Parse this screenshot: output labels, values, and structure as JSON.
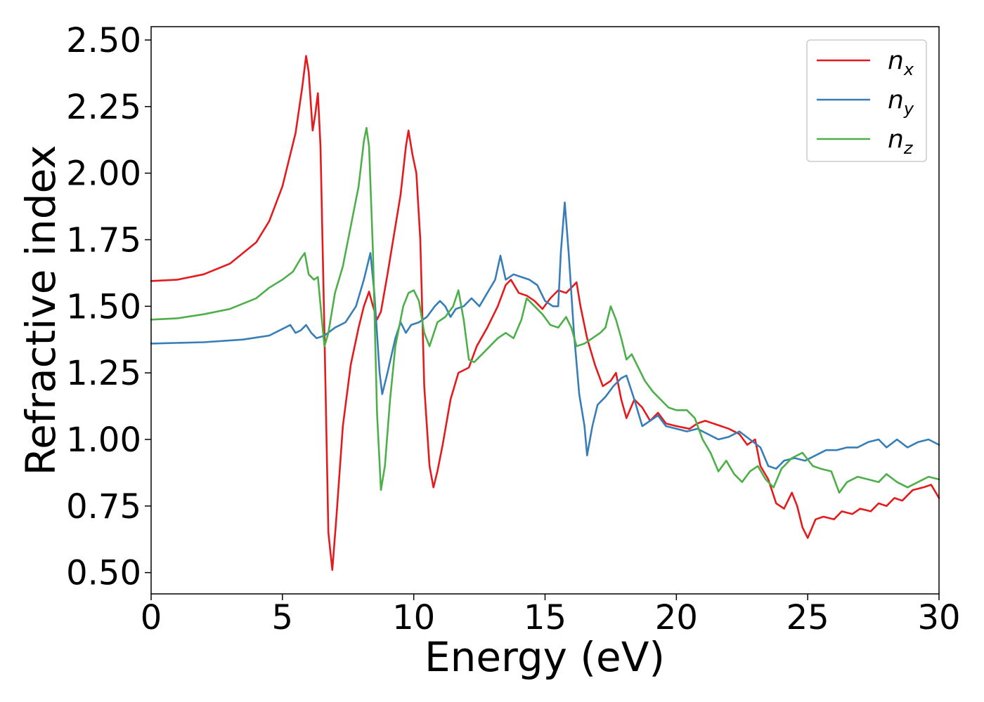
{
  "chart_data": {
    "type": "line",
    "xlabel": "Energy (eV)",
    "ylabel": "Refractive index",
    "xlim": [
      0,
      30
    ],
    "ylim": [
      0.42,
      2.55
    ],
    "xticks": [
      0,
      5,
      10,
      15,
      20,
      25,
      30
    ],
    "xtick_labels": [
      "0",
      "5",
      "10",
      "15",
      "20",
      "25",
      "30"
    ],
    "yticks": [
      0.5,
      0.75,
      1.0,
      1.25,
      1.5,
      1.75,
      2.0,
      2.25,
      2.5
    ],
    "ytick_labels": [
      "0.50",
      "0.75",
      "1.00",
      "1.25",
      "1.50",
      "1.75",
      "2.00",
      "2.25",
      "2.50"
    ],
    "grid": false,
    "legend": "top-right",
    "series": [
      {
        "base": "n",
        "sub": "x",
        "color": "#e41a1c",
        "points": [
          [
            0,
            1.595
          ],
          [
            1,
            1.6
          ],
          [
            2,
            1.62
          ],
          [
            3,
            1.66
          ],
          [
            4,
            1.74
          ],
          [
            4.5,
            1.82
          ],
          [
            5,
            1.95
          ],
          [
            5.5,
            2.15
          ],
          [
            5.75,
            2.32
          ],
          [
            5.9,
            2.44
          ],
          [
            6.0,
            2.38
          ],
          [
            6.15,
            2.16
          ],
          [
            6.25,
            2.22
          ],
          [
            6.35,
            2.3
          ],
          [
            6.45,
            2.1
          ],
          [
            6.6,
            1.4
          ],
          [
            6.75,
            0.65
          ],
          [
            6.9,
            0.51
          ],
          [
            7.05,
            0.7
          ],
          [
            7.3,
            1.05
          ],
          [
            7.6,
            1.28
          ],
          [
            7.9,
            1.42
          ],
          [
            8.1,
            1.5
          ],
          [
            8.3,
            1.555
          ],
          [
            8.45,
            1.5
          ],
          [
            8.6,
            1.45
          ],
          [
            8.75,
            1.48
          ],
          [
            9.0,
            1.62
          ],
          [
            9.3,
            1.8
          ],
          [
            9.5,
            1.92
          ],
          [
            9.7,
            2.1
          ],
          [
            9.8,
            2.16
          ],
          [
            9.95,
            2.07
          ],
          [
            10.1,
            2.0
          ],
          [
            10.25,
            1.75
          ],
          [
            10.4,
            1.2
          ],
          [
            10.6,
            0.9
          ],
          [
            10.75,
            0.82
          ],
          [
            10.9,
            0.88
          ],
          [
            11.1,
            0.98
          ],
          [
            11.4,
            1.15
          ],
          [
            11.7,
            1.25
          ],
          [
            12.1,
            1.27
          ],
          [
            12.4,
            1.35
          ],
          [
            12.8,
            1.42
          ],
          [
            13.2,
            1.5
          ],
          [
            13.5,
            1.58
          ],
          [
            13.7,
            1.6
          ],
          [
            14.0,
            1.55
          ],
          [
            14.3,
            1.54
          ],
          [
            14.6,
            1.52
          ],
          [
            14.9,
            1.49
          ],
          [
            15.2,
            1.53
          ],
          [
            15.5,
            1.56
          ],
          [
            15.8,
            1.55
          ],
          [
            16.0,
            1.57
          ],
          [
            16.2,
            1.59
          ],
          [
            16.35,
            1.5
          ],
          [
            16.6,
            1.38
          ],
          [
            16.9,
            1.28
          ],
          [
            17.2,
            1.2
          ],
          [
            17.5,
            1.22
          ],
          [
            17.7,
            1.25
          ],
          [
            17.9,
            1.15
          ],
          [
            18.1,
            1.08
          ],
          [
            18.4,
            1.15
          ],
          [
            18.7,
            1.12
          ],
          [
            19.0,
            1.07
          ],
          [
            19.3,
            1.1
          ],
          [
            19.6,
            1.06
          ],
          [
            20.0,
            1.05
          ],
          [
            20.5,
            1.04
          ],
          [
            20.8,
            1.06
          ],
          [
            21.1,
            1.07
          ],
          [
            21.4,
            1.06
          ],
          [
            21.7,
            1.05
          ],
          [
            22.0,
            1.04
          ],
          [
            22.4,
            1.02
          ],
          [
            22.7,
            0.98
          ],
          [
            23.0,
            1.0
          ],
          [
            23.2,
            0.9
          ],
          [
            23.5,
            0.85
          ],
          [
            23.8,
            0.76
          ],
          [
            24.1,
            0.74
          ],
          [
            24.4,
            0.8
          ],
          [
            24.6,
            0.75
          ],
          [
            24.8,
            0.67
          ],
          [
            25.0,
            0.63
          ],
          [
            25.3,
            0.7
          ],
          [
            25.6,
            0.71
          ],
          [
            26.0,
            0.7
          ],
          [
            26.3,
            0.73
          ],
          [
            26.7,
            0.72
          ],
          [
            27.0,
            0.74
          ],
          [
            27.4,
            0.73
          ],
          [
            27.7,
            0.76
          ],
          [
            28.0,
            0.75
          ],
          [
            28.3,
            0.78
          ],
          [
            28.6,
            0.77
          ],
          [
            29.0,
            0.81
          ],
          [
            29.4,
            0.82
          ],
          [
            29.7,
            0.83
          ],
          [
            30,
            0.78
          ]
        ]
      },
      {
        "base": "n",
        "sub": "y",
        "color": "#377eb8",
        "points": [
          [
            0,
            1.36
          ],
          [
            2,
            1.365
          ],
          [
            3.5,
            1.375
          ],
          [
            4.5,
            1.39
          ],
          [
            5.1,
            1.42
          ],
          [
            5.3,
            1.43
          ],
          [
            5.5,
            1.4
          ],
          [
            5.7,
            1.41
          ],
          [
            5.9,
            1.43
          ],
          [
            6.1,
            1.4
          ],
          [
            6.3,
            1.38
          ],
          [
            6.6,
            1.39
          ],
          [
            7.0,
            1.42
          ],
          [
            7.4,
            1.44
          ],
          [
            7.8,
            1.5
          ],
          [
            8.1,
            1.6
          ],
          [
            8.35,
            1.7
          ],
          [
            8.5,
            1.55
          ],
          [
            8.7,
            1.25
          ],
          [
            8.8,
            1.17
          ],
          [
            9.0,
            1.25
          ],
          [
            9.3,
            1.38
          ],
          [
            9.5,
            1.44
          ],
          [
            9.7,
            1.4
          ],
          [
            9.9,
            1.43
          ],
          [
            10.2,
            1.44
          ],
          [
            10.5,
            1.46
          ],
          [
            10.8,
            1.5
          ],
          [
            11.0,
            1.52
          ],
          [
            11.2,
            1.5
          ],
          [
            11.4,
            1.46
          ],
          [
            11.6,
            1.49
          ],
          [
            11.9,
            1.5
          ],
          [
            12.2,
            1.53
          ],
          [
            12.5,
            1.5
          ],
          [
            12.8,
            1.55
          ],
          [
            13.1,
            1.6
          ],
          [
            13.3,
            1.69
          ],
          [
            13.5,
            1.6
          ],
          [
            13.8,
            1.62
          ],
          [
            14.1,
            1.61
          ],
          [
            14.4,
            1.6
          ],
          [
            14.7,
            1.58
          ],
          [
            15.0,
            1.52
          ],
          [
            15.3,
            1.5
          ],
          [
            15.5,
            1.5
          ],
          [
            15.6,
            1.7
          ],
          [
            15.75,
            1.89
          ],
          [
            15.9,
            1.7
          ],
          [
            16.1,
            1.4
          ],
          [
            16.3,
            1.17
          ],
          [
            16.5,
            1.05
          ],
          [
            16.6,
            0.94
          ],
          [
            16.8,
            1.05
          ],
          [
            17.0,
            1.13
          ],
          [
            17.3,
            1.16
          ],
          [
            17.6,
            1.2
          ],
          [
            17.9,
            1.23
          ],
          [
            18.1,
            1.24
          ],
          [
            18.4,
            1.15
          ],
          [
            18.7,
            1.05
          ],
          [
            19.0,
            1.07
          ],
          [
            19.3,
            1.09
          ],
          [
            19.6,
            1.05
          ],
          [
            20.0,
            1.04
          ],
          [
            20.4,
            1.03
          ],
          [
            20.8,
            1.04
          ],
          [
            21.2,
            1.02
          ],
          [
            21.6,
            1.0
          ],
          [
            22.0,
            1.01
          ],
          [
            22.4,
            1.03
          ],
          [
            22.8,
            1.0
          ],
          [
            23.2,
            0.97
          ],
          [
            23.5,
            0.9
          ],
          [
            23.8,
            0.89
          ],
          [
            24.1,
            0.92
          ],
          [
            24.5,
            0.93
          ],
          [
            24.9,
            0.92
          ],
          [
            25.3,
            0.94
          ],
          [
            25.7,
            0.96
          ],
          [
            26.1,
            0.96
          ],
          [
            26.5,
            0.97
          ],
          [
            26.9,
            0.97
          ],
          [
            27.3,
            0.99
          ],
          [
            27.7,
            1.0
          ],
          [
            28.0,
            0.97
          ],
          [
            28.4,
            1.0
          ],
          [
            28.8,
            0.97
          ],
          [
            29.2,
            0.99
          ],
          [
            29.6,
            1.0
          ],
          [
            30,
            0.98
          ]
        ]
      },
      {
        "base": "n",
        "sub": "z",
        "color": "#4daf4a",
        "points": [
          [
            0,
            1.45
          ],
          [
            1,
            1.455
          ],
          [
            2,
            1.47
          ],
          [
            3,
            1.49
          ],
          [
            4,
            1.53
          ],
          [
            4.5,
            1.57
          ],
          [
            5.0,
            1.6
          ],
          [
            5.4,
            1.63
          ],
          [
            5.7,
            1.68
          ],
          [
            5.85,
            1.7
          ],
          [
            6.0,
            1.62
          ],
          [
            6.2,
            1.6
          ],
          [
            6.35,
            1.61
          ],
          [
            6.5,
            1.45
          ],
          [
            6.6,
            1.35
          ],
          [
            6.75,
            1.4
          ],
          [
            7.0,
            1.55
          ],
          [
            7.3,
            1.65
          ],
          [
            7.6,
            1.8
          ],
          [
            7.9,
            1.95
          ],
          [
            8.1,
            2.12
          ],
          [
            8.2,
            2.17
          ],
          [
            8.3,
            2.1
          ],
          [
            8.45,
            1.7
          ],
          [
            8.6,
            1.1
          ],
          [
            8.75,
            0.81
          ],
          [
            8.9,
            0.9
          ],
          [
            9.1,
            1.15
          ],
          [
            9.3,
            1.35
          ],
          [
            9.6,
            1.5
          ],
          [
            9.8,
            1.55
          ],
          [
            10.0,
            1.56
          ],
          [
            10.2,
            1.52
          ],
          [
            10.4,
            1.4
          ],
          [
            10.6,
            1.35
          ],
          [
            10.9,
            1.44
          ],
          [
            11.2,
            1.46
          ],
          [
            11.5,
            1.5
          ],
          [
            11.7,
            1.56
          ],
          [
            11.9,
            1.45
          ],
          [
            12.1,
            1.3
          ],
          [
            12.3,
            1.29
          ],
          [
            12.6,
            1.32
          ],
          [
            12.9,
            1.35
          ],
          [
            13.2,
            1.38
          ],
          [
            13.5,
            1.4
          ],
          [
            13.8,
            1.38
          ],
          [
            14.1,
            1.45
          ],
          [
            14.3,
            1.53
          ],
          [
            14.6,
            1.5
          ],
          [
            14.9,
            1.47
          ],
          [
            15.2,
            1.43
          ],
          [
            15.5,
            1.42
          ],
          [
            15.8,
            1.46
          ],
          [
            16.0,
            1.42
          ],
          [
            16.2,
            1.35
          ],
          [
            16.5,
            1.36
          ],
          [
            16.8,
            1.38
          ],
          [
            17.1,
            1.4
          ],
          [
            17.3,
            1.42
          ],
          [
            17.5,
            1.5
          ],
          [
            17.7,
            1.45
          ],
          [
            17.9,
            1.38
          ],
          [
            18.1,
            1.3
          ],
          [
            18.3,
            1.32
          ],
          [
            18.5,
            1.28
          ],
          [
            18.8,
            1.22
          ],
          [
            19.1,
            1.18
          ],
          [
            19.4,
            1.15
          ],
          [
            19.7,
            1.12
          ],
          [
            20.0,
            1.11
          ],
          [
            20.4,
            1.11
          ],
          [
            20.7,
            1.08
          ],
          [
            21.0,
            1.0
          ],
          [
            21.3,
            0.95
          ],
          [
            21.6,
            0.88
          ],
          [
            21.9,
            0.92
          ],
          [
            22.2,
            0.87
          ],
          [
            22.5,
            0.84
          ],
          [
            22.8,
            0.88
          ],
          [
            23.1,
            0.9
          ],
          [
            23.4,
            0.85
          ],
          [
            23.7,
            0.82
          ],
          [
            24.0,
            0.89
          ],
          [
            24.4,
            0.93
          ],
          [
            24.8,
            0.95
          ],
          [
            25.2,
            0.9
          ],
          [
            25.5,
            0.89
          ],
          [
            25.9,
            0.88
          ],
          [
            26.2,
            0.8
          ],
          [
            26.5,
            0.84
          ],
          [
            26.9,
            0.86
          ],
          [
            27.3,
            0.85
          ],
          [
            27.7,
            0.84
          ],
          [
            28.0,
            0.87
          ],
          [
            28.4,
            0.84
          ],
          [
            28.8,
            0.82
          ],
          [
            29.2,
            0.84
          ],
          [
            29.6,
            0.86
          ],
          [
            30,
            0.85
          ]
        ]
      }
    ]
  }
}
